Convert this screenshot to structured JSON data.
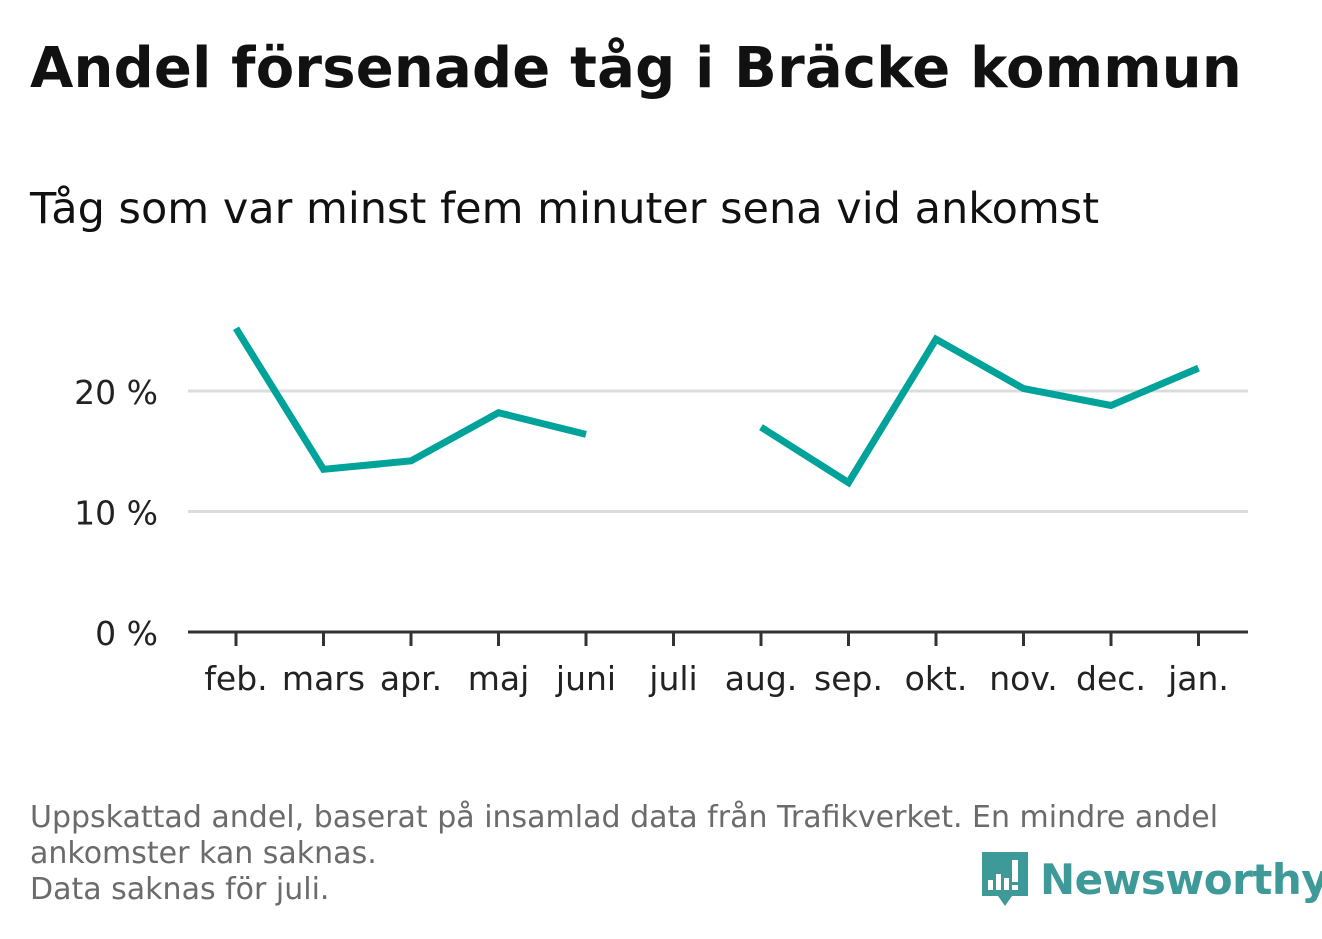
{
  "title": "Andel försenade tåg i Bräcke kommun",
  "subtitle": "Tåg som var minst fem minuter sena vid ankomst",
  "footnote": {
    "line1": "Uppskattad andel, baserat på insamlad data från Trafikverket. En mindre andel",
    "line2": "ankomster kan saknas.",
    "line3": "Data saknas för juli."
  },
  "brand": {
    "name": "Newsworthy",
    "icon": "newsworthy-logo-icon",
    "color": "#3d9a98"
  },
  "chart_data": {
    "type": "line",
    "title": "Andel försenade tåg i Bräcke kommun",
    "subtitle": "Tåg som var minst fem minuter sena vid ankomst",
    "xlabel": "",
    "ylabel": "",
    "categories": [
      "feb.",
      "mars",
      "apr.",
      "maj",
      "juni",
      "juli",
      "aug.",
      "sep.",
      "okt.",
      "nov.",
      "dec.",
      "jan."
    ],
    "series": [
      {
        "values": [
          25.2,
          13.5,
          14.2,
          18.2,
          16.4,
          null,
          17.0,
          12.4,
          24.3,
          20.2,
          18.8,
          21.9
        ],
        "color": "#00a39a"
      }
    ],
    "yticks": [
      0,
      10,
      20
    ],
    "ytick_labels": [
      "0 %",
      "10 %",
      "20 %"
    ],
    "ylim": [
      0,
      30
    ],
    "grid": true,
    "legend": "none"
  }
}
